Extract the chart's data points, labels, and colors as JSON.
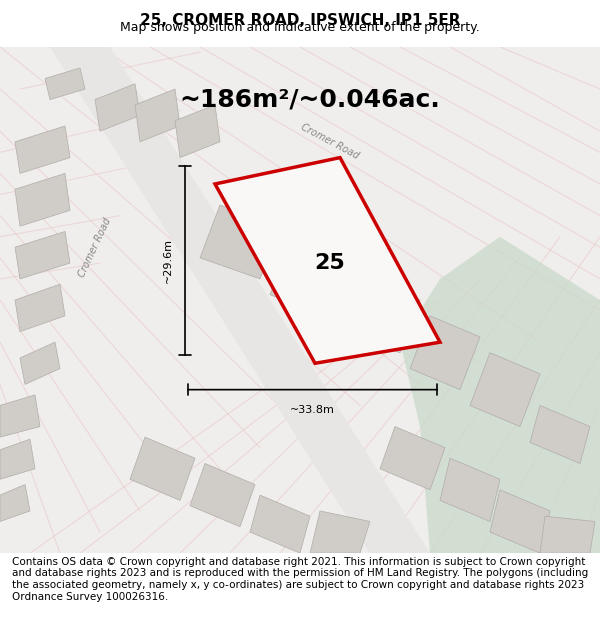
{
  "title_line1": "25, CROMER ROAD, IPSWICH, IP1 5ER",
  "title_line2": "Map shows position and indicative extent of the property.",
  "footer_text": "Contains OS data © Crown copyright and database right 2021. This information is subject to Crown copyright and database rights 2023 and is reproduced with the permission of HM Land Registry. The polygons (including the associated geometry, namely x, y co-ordinates) are subject to Crown copyright and database rights 2023 Ordnance Survey 100026316.",
  "area_text": "~186m²/~0.046ac.",
  "property_label": "25",
  "dim_vertical": "~29.6m",
  "dim_horizontal": "~33.8m",
  "bg_color": "#f0eeec",
  "map_bg": "#f0eeec",
  "road_color_light": "#e8c8c8",
  "building_color": "#d8d4d0",
  "green_area": "#c8d8c8",
  "property_fill": "#f5f0ee",
  "property_edge": "#cc0000",
  "road_label_color": "#888888",
  "title_fontsize": 11,
  "subtitle_fontsize": 9,
  "footer_fontsize": 7.5,
  "area_fontsize": 18,
  "label_fontsize": 16
}
